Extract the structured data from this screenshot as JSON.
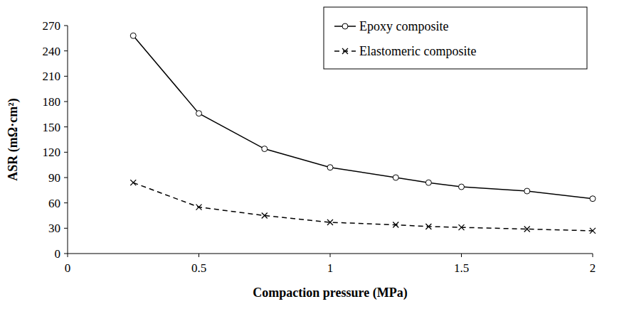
{
  "chart_data": {
    "type": "line",
    "x_label": "Compaction pressure (MPa)",
    "y_label": "ASR (mΩ·cm²)",
    "x": [
      0.25,
      0.5,
      0.75,
      1,
      1.25,
      1.375,
      1.5,
      1.75,
      2
    ],
    "series": [
      {
        "name": "Epoxy composite",
        "color": "#000000",
        "marker": "circle",
        "line_style": "solid",
        "values": [
          258,
          166,
          124,
          102,
          90,
          84,
          79,
          74,
          65
        ]
      },
      {
        "name": "Elastomeric composite",
        "color": "#000000",
        "marker": "x",
        "line_style": "dashed",
        "values": [
          84,
          55,
          45,
          37,
          34,
          32,
          31,
          29,
          27
        ]
      }
    ],
    "xlim": [
      0,
      2
    ],
    "ylim": [
      0,
      270
    ],
    "xticks": [
      0,
      0.5,
      1,
      1.5,
      2
    ],
    "yticks": [
      0,
      30,
      60,
      90,
      120,
      150,
      180,
      210,
      240,
      270
    ],
    "grid": false,
    "legend": "top right"
  }
}
